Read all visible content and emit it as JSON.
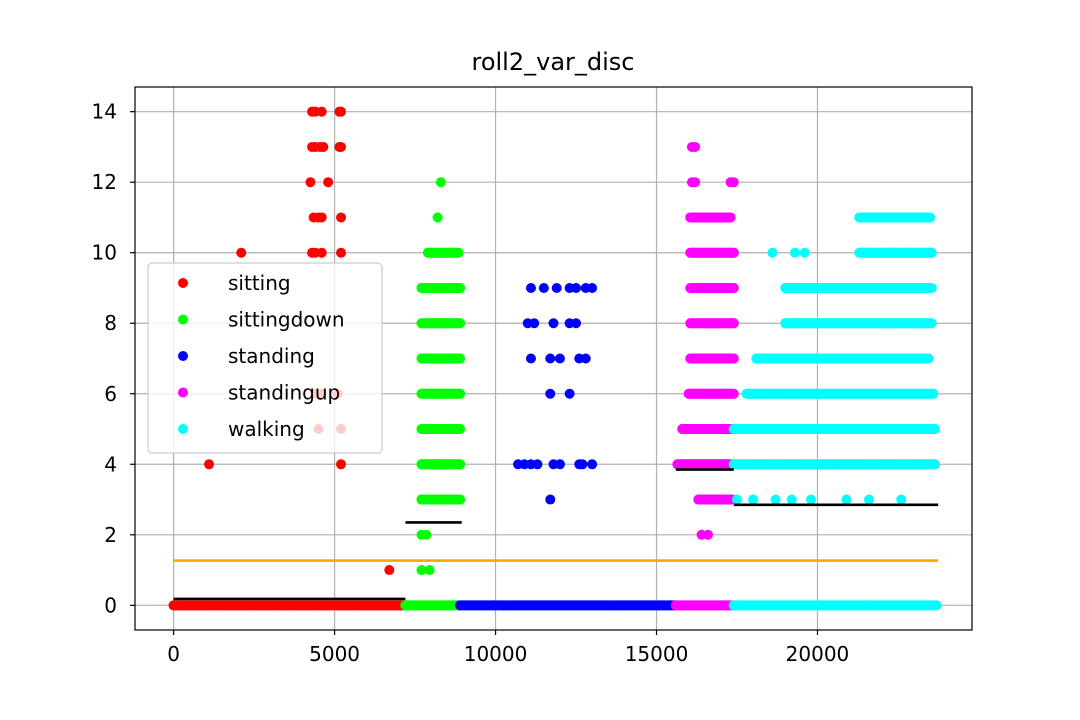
{
  "chart_data": {
    "type": "scatter",
    "title": "roll2_var_disc",
    "xlabel": "",
    "ylabel": "",
    "xlim": [
      -1200,
      24800
    ],
    "ylim": [
      -0.7,
      14.7
    ],
    "xticks": [
      0,
      5000,
      10000,
      15000,
      20000
    ],
    "xtick_labels": [
      "0",
      "5000",
      "10000",
      "15000",
      "20000"
    ],
    "yticks": [
      0,
      2,
      4,
      6,
      8,
      10,
      12,
      14
    ],
    "ytick_labels": [
      "0",
      "2",
      "4",
      "6",
      "8",
      "10",
      "12",
      "14"
    ],
    "grid": true,
    "legend_position": "center-left",
    "series": [
      {
        "name": "sitting",
        "color": "#ff0000",
        "x_range": [
          0,
          7200
        ],
        "bands": [
          {
            "y": 0,
            "x_from": 0,
            "x_to": 7150
          }
        ],
        "points": [
          [
            1100,
            4
          ],
          [
            2100,
            10
          ],
          [
            4300,
            14
          ],
          [
            4400,
            14
          ],
          [
            4600,
            14
          ],
          [
            5200,
            14
          ],
          [
            5150,
            14
          ],
          [
            4300,
            13
          ],
          [
            4400,
            13
          ],
          [
            4550,
            13
          ],
          [
            4650,
            13
          ],
          [
            5150,
            13
          ],
          [
            5200,
            13
          ],
          [
            4250,
            12
          ],
          [
            4800,
            12
          ],
          [
            4350,
            11
          ],
          [
            4500,
            11
          ],
          [
            4600,
            11
          ],
          [
            5200,
            11
          ],
          [
            4300,
            10
          ],
          [
            4400,
            10
          ],
          [
            4600,
            10
          ],
          [
            5200,
            10
          ],
          [
            4400,
            6
          ],
          [
            4600,
            6
          ],
          [
            5100,
            6
          ],
          [
            4500,
            5
          ],
          [
            5200,
            5
          ],
          [
            5200,
            4
          ],
          [
            6700,
            1
          ]
        ]
      },
      {
        "name": "sittingdown",
        "color": "#00ff00",
        "x_range": [
          7200,
          8900
        ],
        "bands": [
          {
            "y": 0,
            "x_from": 7200,
            "x_to": 8900
          },
          {
            "y": 3,
            "x_from": 7700,
            "x_to": 8900
          },
          {
            "y": 4,
            "x_from": 7700,
            "x_to": 8900
          },
          {
            "y": 5,
            "x_from": 7700,
            "x_to": 8900
          },
          {
            "y": 6,
            "x_from": 7700,
            "x_to": 8900
          },
          {
            "y": 7,
            "x_from": 7700,
            "x_to": 8900
          },
          {
            "y": 8,
            "x_from": 7700,
            "x_to": 8900
          },
          {
            "y": 9,
            "x_from": 7700,
            "x_to": 8900
          },
          {
            "y": 10,
            "x_from": 7900,
            "x_to": 8850
          }
        ],
        "points": [
          [
            8300,
            12
          ],
          [
            8200,
            11
          ],
          [
            7700,
            2
          ],
          [
            7850,
            2
          ],
          [
            7700,
            1
          ],
          [
            7950,
            1
          ]
        ]
      },
      {
        "name": "standing",
        "color": "#0000ff",
        "x_range": [
          8900,
          15600
        ],
        "bands": [
          {
            "y": 0,
            "x_from": 8900,
            "x_to": 15600
          }
        ],
        "points": [
          [
            11100,
            9
          ],
          [
            11500,
            9
          ],
          [
            11900,
            9
          ],
          [
            12300,
            9
          ],
          [
            12500,
            9
          ],
          [
            12800,
            9
          ],
          [
            13000,
            9
          ],
          [
            11000,
            8
          ],
          [
            11200,
            8
          ],
          [
            11800,
            8
          ],
          [
            12300,
            8
          ],
          [
            12500,
            8
          ],
          [
            11100,
            7
          ],
          [
            11700,
            7
          ],
          [
            12000,
            7
          ],
          [
            12600,
            7
          ],
          [
            12800,
            7
          ],
          [
            11700,
            6
          ],
          [
            12300,
            6
          ],
          [
            10700,
            4
          ],
          [
            10900,
            4
          ],
          [
            11100,
            4
          ],
          [
            11300,
            4
          ],
          [
            11800,
            4
          ],
          [
            12000,
            4
          ],
          [
            12600,
            4
          ],
          [
            12700,
            4
          ],
          [
            13000,
            4
          ],
          [
            11700,
            3
          ]
        ]
      },
      {
        "name": "standingup",
        "color": "#ff00ff",
        "x_range": [
          15600,
          17400
        ],
        "bands": [
          {
            "y": 0,
            "x_from": 15600,
            "x_to": 17400
          },
          {
            "y": 4,
            "x_from": 15650,
            "x_to": 17350
          },
          {
            "y": 5,
            "x_from": 15800,
            "x_to": 17400
          },
          {
            "y": 6,
            "x_from": 16000,
            "x_to": 17400
          },
          {
            "y": 7,
            "x_from": 16050,
            "x_to": 17400
          },
          {
            "y": 8,
            "x_from": 16050,
            "x_to": 17400
          },
          {
            "y": 9,
            "x_from": 16050,
            "x_to": 17400
          },
          {
            "y": 10,
            "x_from": 16050,
            "x_to": 17400
          },
          {
            "y": 11,
            "x_from": 16050,
            "x_to": 17300
          },
          {
            "y": 3,
            "x_from": 16300,
            "x_to": 17350
          }
        ],
        "points": [
          [
            16100,
            13
          ],
          [
            16200,
            13
          ],
          [
            16100,
            12
          ],
          [
            16200,
            12
          ],
          [
            17300,
            12
          ],
          [
            17400,
            12
          ],
          [
            16650,
            11
          ],
          [
            17000,
            11
          ],
          [
            16400,
            2
          ],
          [
            16600,
            2
          ]
        ]
      },
      {
        "name": "walking",
        "color": "#00ffff",
        "x_range": [
          17400,
          23700
        ],
        "bands": [
          {
            "y": 0,
            "x_from": 17400,
            "x_to": 23700
          },
          {
            "y": 4,
            "x_from": 17400,
            "x_to": 23650
          },
          {
            "y": 5,
            "x_from": 17400,
            "x_to": 23650
          },
          {
            "y": 6,
            "x_from": 17800,
            "x_to": 23600
          },
          {
            "y": 7,
            "x_from": 18100,
            "x_to": 23450
          },
          {
            "y": 8,
            "x_from": 19000,
            "x_to": 23550
          },
          {
            "y": 9,
            "x_from": 19000,
            "x_to": 23550
          },
          {
            "y": 10,
            "x_from": 21300,
            "x_to": 23550
          },
          {
            "y": 11,
            "x_from": 21300,
            "x_to": 23500
          }
        ],
        "points": [
          [
            18600,
            10
          ],
          [
            19300,
            10
          ],
          [
            19600,
            10
          ],
          [
            17500,
            3
          ],
          [
            18000,
            3
          ],
          [
            18700,
            3
          ],
          [
            19200,
            3
          ],
          [
            19800,
            3
          ],
          [
            20900,
            3
          ],
          [
            21600,
            3
          ],
          [
            22600,
            3
          ],
          [
            18300,
            7
          ],
          [
            20500,
            4
          ]
        ]
      }
    ],
    "reference_lines": [
      {
        "color": "#000000",
        "y": 0.18,
        "x_from": 0,
        "x_to": 7200
      },
      {
        "color": "#000000",
        "y": 2.35,
        "x_from": 7200,
        "x_to": 8950
      },
      {
        "color": "#000000",
        "y": 3.85,
        "x_from": 15600,
        "x_to": 17400
      },
      {
        "color": "#000000",
        "y": 2.85,
        "x_from": 17400,
        "x_to": 23750
      },
      {
        "color": "#ffa500",
        "y": 1.27,
        "x_from": 0,
        "x_to": 23750
      }
    ]
  }
}
